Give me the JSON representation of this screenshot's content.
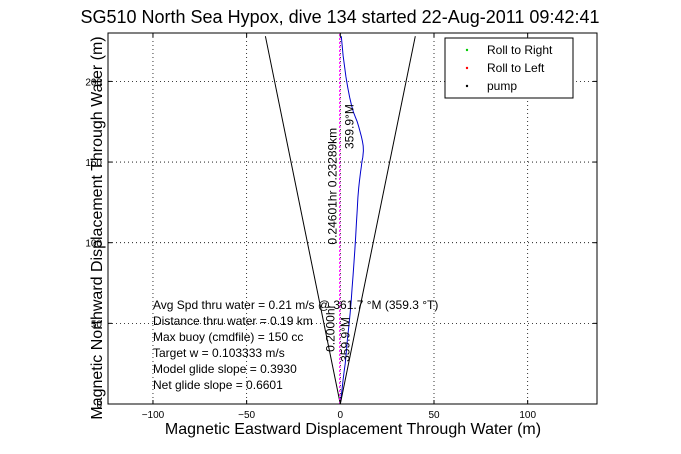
{
  "chart_data": {
    "type": "line",
    "title": "SG510 North Sea Hypox, dive 134 started 22-Aug-2011 09:42:41",
    "xlabel": "Magnetic Eastward Displacement Through Water (m)",
    "ylabel": "Magnetic Northward Displacement Through Water (m)",
    "xlim": [
      -124,
      137
    ],
    "ylim": [
      0,
      230
    ],
    "xticks": [
      -100,
      -50,
      0,
      50,
      100
    ],
    "yticks": [
      0,
      50,
      100,
      150,
      200
    ],
    "xtick_labels": [
      "−100",
      "−50",
      "0",
      "50",
      "100"
    ],
    "ytick_labels": [
      "0",
      "50",
      "100",
      "150",
      "200"
    ],
    "grid": true,
    "legend_position": "top-right",
    "legend": [
      {
        "label": "Roll to Right",
        "color": "#00cc00",
        "marker": "point"
      },
      {
        "label": "Roll to Left",
        "color": "#ff0000",
        "marker": "point"
      },
      {
        "label": "pump",
        "color": "#000000",
        "marker": "point"
      }
    ],
    "series": [
      {
        "name": "track",
        "color": "#0000cc",
        "x": [
          0,
          0.5,
          1,
          1.5,
          2,
          2.6,
          3.2,
          3.8,
          4.5,
          5.2,
          5.8,
          6.3,
          6.8,
          7.3,
          7.8,
          8.2,
          8.6,
          9,
          9.4,
          9.8,
          10.2,
          10.5,
          10.8,
          11.2,
          11.5,
          12,
          12.3,
          12.2,
          11.8,
          11.2,
          10.5,
          9.8,
          9,
          8,
          7,
          6,
          5,
          4,
          3,
          2.2,
          1.5,
          1,
          0.5
        ],
        "y": [
          0,
          5,
          10,
          15,
          20,
          25,
          32,
          40,
          48,
          56,
          64,
          72,
          80,
          88,
          96,
          104,
          112,
          120,
          128,
          134,
          138,
          141,
          144,
          147,
          150,
          153,
          157,
          160,
          163,
          166,
          169,
          172,
          175,
          178,
          181,
          185,
          190,
          196,
          203,
          210,
          216,
          222,
          228
        ]
      },
      {
        "name": "cone-left",
        "color": "#000000",
        "x": [
          -40,
          0
        ],
        "y": [
          228,
          0
        ]
      },
      {
        "name": "cone-right",
        "color": "#000000",
        "x": [
          0,
          40
        ],
        "y": [
          0,
          228
        ]
      },
      {
        "name": "heading-359.9M",
        "color": "#ff00ff",
        "style": "dashed",
        "x": [
          -0.3,
          -0.3
        ],
        "y": [
          0,
          230
        ]
      }
    ],
    "annotations": [
      {
        "text": "359.9°M",
        "x": 7,
        "y": 172,
        "rotation": -90
      },
      {
        "text": "0.24601hr 0.23289km",
        "x": -2,
        "y": 135,
        "rotation": -90
      },
      {
        "text": "0.2000hr",
        "x": -3,
        "y": 47,
        "rotation": -90
      },
      {
        "text": "359.9°M",
        "x": 5,
        "y": 40,
        "rotation": -90
      }
    ],
    "stats": [
      "Avg Spd thru water =  0.21 m/s @ 361.7   °M (359.3 °T)",
      "Distance thru water =  0.19 km",
      "Max buoy (cmdfile) = 150 cc",
      "Target w = 0.103333 m/s",
      "Model glide slope = 0.3930",
      "Net glide slope = 0.6601"
    ]
  }
}
